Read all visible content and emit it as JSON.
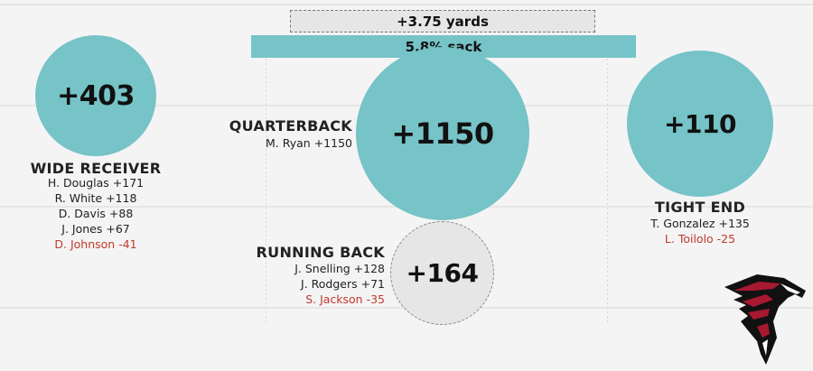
{
  "banner": {
    "yards_label": "+3.75 yards",
    "sack_label": "5.8% sack"
  },
  "positions": {
    "wide_receiver": {
      "title": "WIDE RECEIVER",
      "total": "+403",
      "players": [
        {
          "label": "H. Douglas +171",
          "negative": false
        },
        {
          "label": "R. White +118",
          "negative": false
        },
        {
          "label": "D. Davis +88",
          "negative": false
        },
        {
          "label": "J. Jones +67",
          "negative": false
        },
        {
          "label": "D. Johnson -41",
          "negative": true
        }
      ]
    },
    "quarterback": {
      "title": "QUARTERBACK",
      "total": "+1150",
      "players": [
        {
          "label": "M. Ryan +1150",
          "negative": false
        }
      ]
    },
    "running_back": {
      "title": "RUNNING BACK",
      "total": "+164",
      "players": [
        {
          "label": "J. Snelling +128",
          "negative": false
        },
        {
          "label": "J. Rodgers +71",
          "negative": false
        },
        {
          "label": "S. Jackson -35",
          "negative": true
        }
      ]
    },
    "tight_end": {
      "title": "TIGHT END",
      "total": "+110",
      "players": [
        {
          "label": "T. Gonzalez +135",
          "negative": false
        },
        {
          "label": "L. Toilolo -25",
          "negative": true
        }
      ]
    }
  },
  "colors": {
    "positive_circle": "#76c3c8",
    "neutral_circle": "#e6e6e6",
    "negative_text": "#c0392b",
    "logo_red": "#a71930",
    "logo_black": "#111111"
  },
  "logo": {
    "icon": "falcon-logo-icon"
  }
}
